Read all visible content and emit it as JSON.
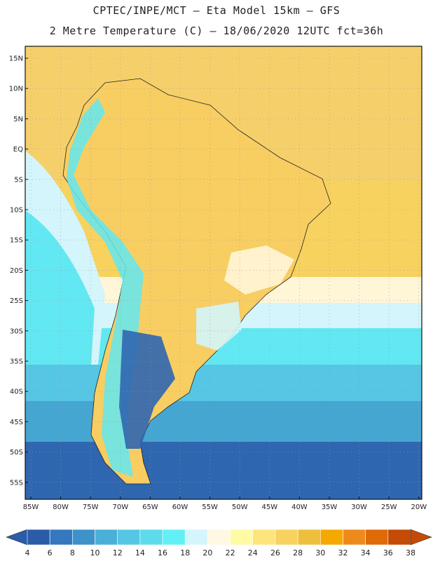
{
  "header": {
    "line1": "CPTEC/INPE/MCT –  Eta Model 15km – GFS",
    "line2": "2 Metre Temperature (C) – 18/06/2020 12UTC fct=36h"
  },
  "axes": {
    "lat_labels": [
      "15N",
      "10N",
      "5N",
      "EQ",
      "5S",
      "10S",
      "15S",
      "20S",
      "25S",
      "30S",
      "35S",
      "40S",
      "45S",
      "50S",
      "55S"
    ],
    "lon_labels": [
      "85W",
      "80W",
      "75W",
      "70W",
      "65W",
      "60W",
      "55W",
      "50W",
      "45W",
      "40W",
      "35W",
      "30W",
      "25W",
      "20W"
    ]
  },
  "colorbar": {
    "labels": [
      "4",
      "6",
      "8",
      "10",
      "12",
      "14",
      "16",
      "18",
      "20",
      "22",
      "24",
      "26",
      "28",
      "30",
      "32",
      "34",
      "36",
      "38"
    ],
    "colors": [
      "#2a5ca8",
      "#3478bf",
      "#3d92c9",
      "#4bb0d8",
      "#55c6e3",
      "#5ddbeb",
      "#62f0f4",
      "#d3f5fb",
      "#fff8e3",
      "#fffba4",
      "#fde47c",
      "#f7d25e",
      "#eebf3c",
      "#f5a800",
      "#ee8a1c",
      "#e06a08",
      "#c54a05"
    ],
    "low_color": "#2a5ca8",
    "high_color": "#c54a05"
  }
}
